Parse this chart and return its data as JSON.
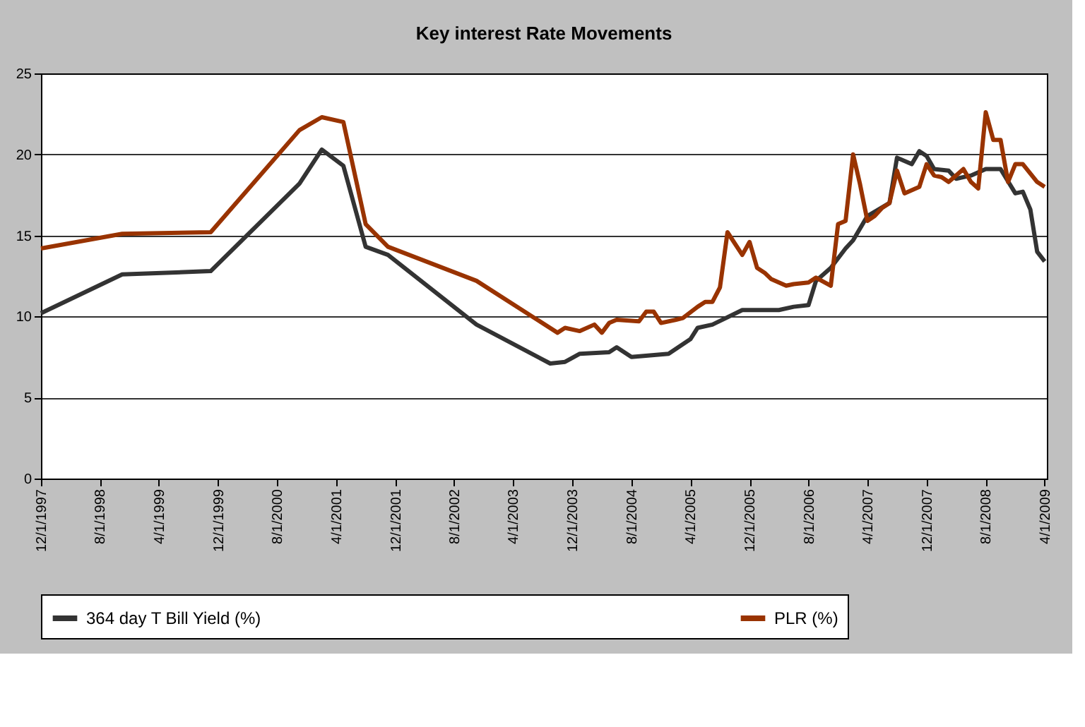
{
  "chart_data": {
    "type": "line",
    "title": "Key interest Rate Movements",
    "xlim": [
      "1997-12-01",
      "2009-04-10"
    ],
    "ylim": [
      0,
      25
    ],
    "yticks": [
      0,
      5,
      10,
      15,
      20,
      25
    ],
    "xticks": [
      {
        "value": "1997-12-01",
        "label": "12/1/1997"
      },
      {
        "value": "1998-08-01",
        "label": "8/1/1998"
      },
      {
        "value": "1999-04-01",
        "label": "4/1/1999"
      },
      {
        "value": "1999-12-01",
        "label": "12/1/1999"
      },
      {
        "value": "2000-08-01",
        "label": "8/1/2000"
      },
      {
        "value": "2001-04-01",
        "label": "4/1/2001"
      },
      {
        "value": "2001-12-01",
        "label": "12/1/2001"
      },
      {
        "value": "2002-08-01",
        "label": "8/1/2002"
      },
      {
        "value": "2003-04-01",
        "label": "4/1/2003"
      },
      {
        "value": "2003-12-01",
        "label": "12/1/2003"
      },
      {
        "value": "2004-08-01",
        "label": "8/1/2004"
      },
      {
        "value": "2005-04-01",
        "label": "4/1/2005"
      },
      {
        "value": "2005-12-01",
        "label": "12/1/2005"
      },
      {
        "value": "2006-08-01",
        "label": "8/1/2006"
      },
      {
        "value": "2007-04-01",
        "label": "4/1/2007"
      },
      {
        "value": "2007-12-01",
        "label": "12/1/2007"
      },
      {
        "value": "2008-08-01",
        "label": "8/1/2008"
      },
      {
        "value": "2009-04-01",
        "label": "4/1/2009"
      }
    ],
    "grid": "y",
    "legend": "bottom",
    "marker": "none",
    "line_style": "solid",
    "series": [
      {
        "name": "364 day T Bill Yield (%)",
        "color": "#333333",
        "x": [
          "1997-12-01",
          "1998-11-01",
          "1999-11-01",
          "2000-11-01",
          "2001-02-01",
          "2001-05-01",
          "2001-08-01",
          "2001-11-01",
          "2002-11-01",
          "2003-09-01",
          "2003-11-01",
          "2004-01-01",
          "2004-05-01",
          "2004-06-01",
          "2004-08-01",
          "2005-01-01",
          "2005-04-01",
          "2005-05-01",
          "2005-07-01",
          "2005-11-01",
          "2006-04-01",
          "2006-06-01",
          "2006-08-01",
          "2006-09-01",
          "2006-11-01",
          "2007-01-01",
          "2007-02-01",
          "2007-04-01",
          "2007-07-01",
          "2007-08-01",
          "2007-10-01",
          "2007-11-01",
          "2007-12-01",
          "2008-01-01",
          "2008-03-01",
          "2008-04-01",
          "2008-06-01",
          "2008-08-01",
          "2008-10-01",
          "2008-12-01",
          "2009-01-01",
          "2009-02-01",
          "2009-03-01",
          "2009-04-01"
        ],
        "values": [
          10.2,
          12.6,
          12.8,
          18.2,
          20.3,
          19.3,
          14.3,
          13.8,
          9.5,
          7.1,
          7.2,
          7.7,
          7.8,
          8.1,
          7.5,
          7.7,
          8.6,
          9.3,
          9.5,
          10.4,
          10.4,
          10.6,
          10.7,
          12.2,
          13.0,
          14.2,
          14.7,
          16.2,
          17.0,
          19.8,
          19.4,
          20.2,
          19.9,
          19.1,
          19.0,
          18.5,
          18.7,
          19.1,
          19.1,
          17.6,
          17.7,
          16.6,
          14.0,
          13.4
        ]
      },
      {
        "name": "PLR (%)",
        "color": "#993300",
        "x": [
          "1997-12-01",
          "1998-11-01",
          "1999-11-01",
          "2000-11-01",
          "2001-02-01",
          "2001-05-01",
          "2001-08-01",
          "2001-11-01",
          "2002-11-01",
          "2003-10-01",
          "2003-11-01",
          "2004-01-01",
          "2004-03-01",
          "2004-04-01",
          "2004-05-01",
          "2004-06-01",
          "2004-09-01",
          "2004-10-01",
          "2004-11-01",
          "2004-12-01",
          "2005-02-01",
          "2005-03-01",
          "2005-05-01",
          "2005-06-01",
          "2005-07-01",
          "2005-08-01",
          "2005-09-01",
          "2005-11-01",
          "2005-12-01",
          "2006-01-01",
          "2006-02-01",
          "2006-03-01",
          "2006-05-01",
          "2006-06-01",
          "2006-08-01",
          "2006-09-01",
          "2006-11-01",
          "2006-12-01",
          "2007-01-01",
          "2007-02-01",
          "2007-03-01",
          "2007-04-01",
          "2007-05-01",
          "2007-06-01",
          "2007-07-01",
          "2007-08-01",
          "2007-09-01",
          "2007-11-01",
          "2007-12-01",
          "2008-01-01",
          "2008-02-01",
          "2008-03-01",
          "2008-05-01",
          "2008-06-01",
          "2008-07-01",
          "2008-08-01",
          "2008-09-01",
          "2008-10-01",
          "2008-11-01",
          "2008-12-01",
          "2009-01-01",
          "2009-03-01",
          "2009-04-01"
        ],
        "values": [
          14.2,
          15.1,
          15.2,
          21.5,
          22.3,
          22.0,
          15.7,
          14.3,
          12.2,
          9.0,
          9.3,
          9.1,
          9.5,
          9.0,
          9.6,
          9.8,
          9.7,
          10.3,
          10.3,
          9.6,
          9.8,
          9.9,
          10.6,
          10.9,
          10.9,
          11.8,
          15.2,
          13.8,
          14.6,
          13.0,
          12.7,
          12.3,
          11.9,
          12.0,
          12.1,
          12.4,
          11.9,
          15.7,
          15.9,
          20.0,
          18.2,
          15.9,
          16.2,
          16.7,
          17.0,
          19.0,
          17.6,
          18.0,
          19.4,
          18.7,
          18.6,
          18.3,
          19.1,
          18.3,
          17.9,
          22.6,
          20.9,
          20.9,
          18.3,
          19.4,
          19.4,
          18.3,
          18.0
        ]
      }
    ]
  }
}
